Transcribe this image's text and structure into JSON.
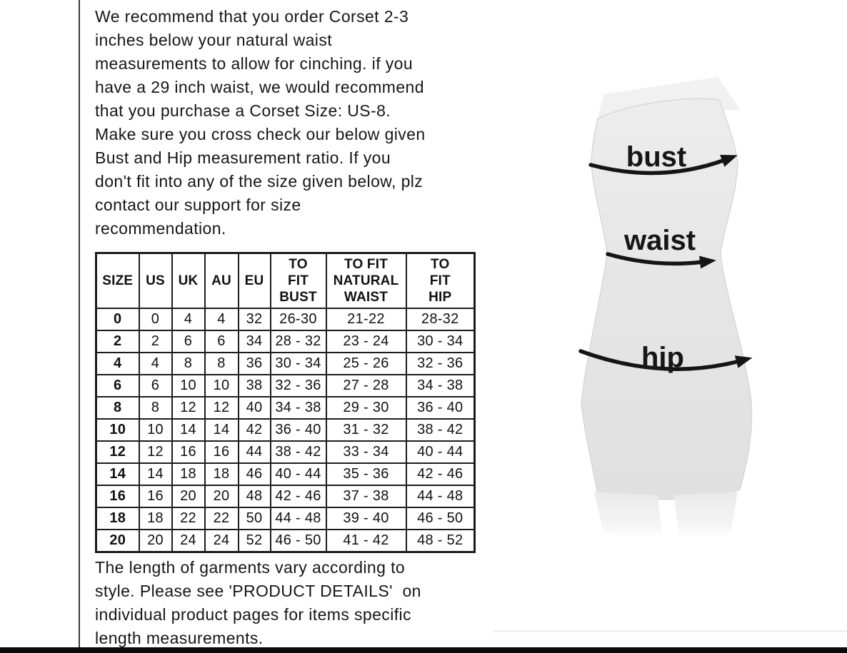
{
  "intro": {
    "lines": [
      "We recommend that you order Corset 2-3",
      "inches below your natural waist",
      "measurements to allow for cinching. if you",
      "have a 29 inch waist, we would recommend",
      "that you purchase a Corset Size: US-8.",
      "Make sure you cross check our below given",
      "Bust and Hip measurement ratio. If you",
      "don't fit into any of the size given below, plz",
      "contact our support for size",
      "recommendation."
    ]
  },
  "size_table": {
    "headers": [
      "SIZE",
      "US",
      "UK",
      "AU",
      "EU",
      "TO\nFIT\nBUST",
      "TO FIT\nNATURAL\nWAIST",
      "TO\nFIT\nHIP"
    ],
    "rows": [
      [
        "0",
        "0",
        "4",
        "4",
        "32",
        "26-30",
        "21-22",
        "28-32"
      ],
      [
        "2",
        "2",
        "6",
        "6",
        "34",
        "28 - 32",
        "23 - 24",
        "30 - 34"
      ],
      [
        "4",
        "4",
        "8",
        "8",
        "36",
        "30 - 34",
        "25 - 26",
        "32 - 36"
      ],
      [
        "6",
        "6",
        "10",
        "10",
        "38",
        "32 - 36",
        "27 - 28",
        "34 - 38"
      ],
      [
        "8",
        "8",
        "12",
        "12",
        "40",
        "34 - 38",
        "29 - 30",
        "36 - 40"
      ],
      [
        "10",
        "10",
        "14",
        "14",
        "42",
        "36 - 40",
        "31 - 32",
        "38 - 42"
      ],
      [
        "12",
        "12",
        "16",
        "16",
        "44",
        "38 - 42",
        "33 - 34",
        "40 - 44"
      ],
      [
        "14",
        "14",
        "18",
        "18",
        "46",
        "40 - 44",
        "35 - 36",
        "42 - 46"
      ],
      [
        "16",
        "16",
        "20",
        "20",
        "48",
        "42 - 46",
        "37 - 38",
        "44 - 48"
      ],
      [
        "18",
        "18",
        "22",
        "22",
        "50",
        "44 - 48",
        "39 - 40",
        "46 - 50"
      ],
      [
        "20",
        "20",
        "24",
        "24",
        "52",
        "46 - 50",
        "41 - 42",
        "48 - 52"
      ]
    ]
  },
  "footer": {
    "lines": [
      "The length of garments vary according to",
      "style. Please see 'PRODUCT DETAILS'  on",
      "individual product pages for items specific",
      "length measurements."
    ]
  },
  "figure": {
    "labels": {
      "bust": "bust",
      "waist": "waist",
      "hip": "hip"
    }
  },
  "colors": {
    "text": "#161616",
    "table_border": "#1c1c1c",
    "body_fill": "#e6e6e6",
    "body_shadow": "#f1f1f1",
    "leg_fill": "#ededed",
    "arrow": "#151515",
    "left_rule": "#3a3a3a",
    "bottom_bar": "#0b0b0b",
    "background": "#ffffff"
  }
}
